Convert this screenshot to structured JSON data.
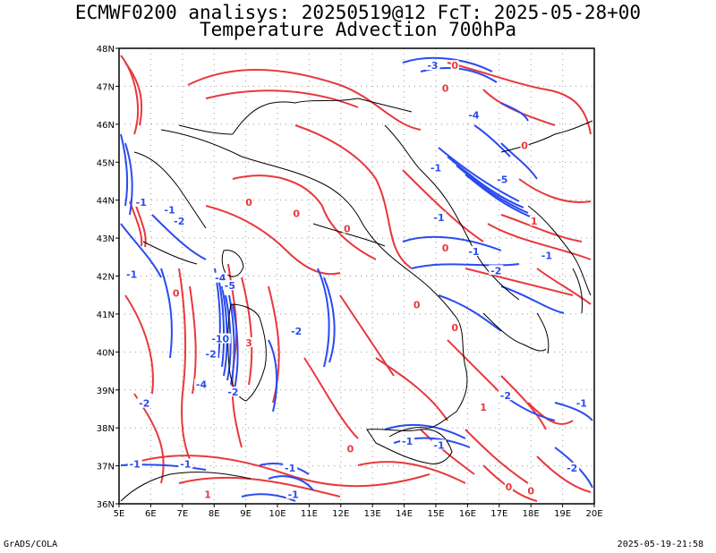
{
  "title": {
    "line1": "ECMWF0200 analisys: 20250519@12 FcT: 2025-05-28+00",
    "line2": "Temperature Advection 700hPa"
  },
  "footer": {
    "left": "GrADS/COLA",
    "right": "2025-05-19-21:58"
  },
  "map": {
    "lon_ticks": [
      "5E",
      "6E",
      "7E",
      "8E",
      "9E",
      "10E",
      "11E",
      "12E",
      "13E",
      "14E",
      "15E",
      "16E",
      "17E",
      "18E",
      "19E",
      "20E"
    ],
    "lat_ticks": [
      "48N",
      "47N",
      "46N",
      "45N",
      "44N",
      "43N",
      "42N",
      "41N",
      "40N",
      "39N",
      "38N",
      "37N",
      "36N"
    ],
    "lon_range": [
      5,
      20
    ],
    "lat_range": [
      36,
      48
    ],
    "colors": {
      "positive": "#e8383d",
      "negative": "#2a4bf0",
      "coast": "#000000",
      "grid": "#999999"
    },
    "contour_labels": [
      {
        "text": "-3",
        "lon": 14.9,
        "lat": 47.5,
        "sign": "neg"
      },
      {
        "text": "0",
        "lon": 15.6,
        "lat": 47.5,
        "sign": "pos"
      },
      {
        "text": "0",
        "lon": 15.3,
        "lat": 46.9,
        "sign": "pos"
      },
      {
        "text": "-4",
        "lon": 16.2,
        "lat": 46.2,
        "sign": "neg"
      },
      {
        "text": "-1",
        "lon": 15.0,
        "lat": 44.8,
        "sign": "neg"
      },
      {
        "text": "0",
        "lon": 17.8,
        "lat": 45.4,
        "sign": "pos"
      },
      {
        "text": "-5",
        "lon": 17.1,
        "lat": 44.5,
        "sign": "neg"
      },
      {
        "text": "-1",
        "lon": 15.1,
        "lat": 43.5,
        "sign": "neg"
      },
      {
        "text": "-1",
        "lon": 5.7,
        "lat": 43.9,
        "sign": "neg"
      },
      {
        "text": "-1",
        "lon": 6.6,
        "lat": 43.7,
        "sign": "neg"
      },
      {
        "text": "-2",
        "lon": 6.9,
        "lat": 43.4,
        "sign": "neg"
      },
      {
        "text": "0",
        "lon": 9.1,
        "lat": 43.9,
        "sign": "pos"
      },
      {
        "text": "0",
        "lon": 10.6,
        "lat": 43.6,
        "sign": "pos"
      },
      {
        "text": "0",
        "lon": 12.2,
        "lat": 43.2,
        "sign": "pos"
      },
      {
        "text": "0",
        "lon": 15.3,
        "lat": 42.7,
        "sign": "pos"
      },
      {
        "text": "-1",
        "lon": 16.2,
        "lat": 42.6,
        "sign": "neg"
      },
      {
        "text": "-2",
        "lon": 16.9,
        "lat": 42.1,
        "sign": "neg"
      },
      {
        "text": "-1",
        "lon": 5.4,
        "lat": 42.0,
        "sign": "neg"
      },
      {
        "text": "-4",
        "lon": 8.2,
        "lat": 41.9,
        "sign": "neg"
      },
      {
        "text": "-5",
        "lon": 8.5,
        "lat": 41.7,
        "sign": "neg"
      },
      {
        "text": "0",
        "lon": 6.8,
        "lat": 41.5,
        "sign": "pos"
      },
      {
        "text": "-2",
        "lon": 10.6,
        "lat": 40.5,
        "sign": "neg"
      },
      {
        "text": "-10",
        "lon": 8.2,
        "lat": 40.3,
        "sign": "neg"
      },
      {
        "text": "3",
        "lon": 9.1,
        "lat": 40.2,
        "sign": "pos"
      },
      {
        "text": "-2",
        "lon": 7.9,
        "lat": 39.9,
        "sign": "neg"
      },
      {
        "text": "-4",
        "lon": 7.6,
        "lat": 39.1,
        "sign": "neg"
      },
      {
        "text": "-2",
        "lon": 8.6,
        "lat": 38.9,
        "sign": "neg"
      },
      {
        "text": "-2",
        "lon": 5.8,
        "lat": 38.6,
        "sign": "neg"
      },
      {
        "text": "0",
        "lon": 14.4,
        "lat": 41.2,
        "sign": "pos"
      },
      {
        "text": "0",
        "lon": 15.6,
        "lat": 40.6,
        "sign": "pos"
      },
      {
        "text": "1",
        "lon": 16.5,
        "lat": 38.5,
        "sign": "pos"
      },
      {
        "text": "-2",
        "lon": 17.2,
        "lat": 38.8,
        "sign": "neg"
      },
      {
        "text": "-1",
        "lon": 19.6,
        "lat": 38.6,
        "sign": "neg"
      },
      {
        "text": "-1",
        "lon": 14.1,
        "lat": 37.6,
        "sign": "neg"
      },
      {
        "text": "-1",
        "lon": 15.1,
        "lat": 37.5,
        "sign": "neg"
      },
      {
        "text": "-2",
        "lon": 19.3,
        "lat": 36.9,
        "sign": "neg"
      },
      {
        "text": "-1",
        "lon": 5.5,
        "lat": 37.0,
        "sign": "neg"
      },
      {
        "text": "-1",
        "lon": 7.1,
        "lat": 37.0,
        "sign": "neg"
      },
      {
        "text": "-1",
        "lon": 10.4,
        "lat": 36.9,
        "sign": "neg"
      },
      {
        "text": "-1",
        "lon": 10.5,
        "lat": 36.2,
        "sign": "neg"
      },
      {
        "text": "0",
        "lon": 17.3,
        "lat": 36.4,
        "sign": "pos"
      },
      {
        "text": "0",
        "lon": 18.0,
        "lat": 36.3,
        "sign": "pos"
      },
      {
        "text": "1",
        "lon": 7.8,
        "lat": 36.2,
        "sign": "pos"
      },
      {
        "text": "0",
        "lon": 12.3,
        "lat": 37.4,
        "sign": "pos"
      },
      {
        "text": "1",
        "lon": 18.1,
        "lat": 43.4,
        "sign": "pos"
      },
      {
        "text": "-1",
        "lon": 18.5,
        "lat": 42.5,
        "sign": "neg"
      }
    ]
  }
}
